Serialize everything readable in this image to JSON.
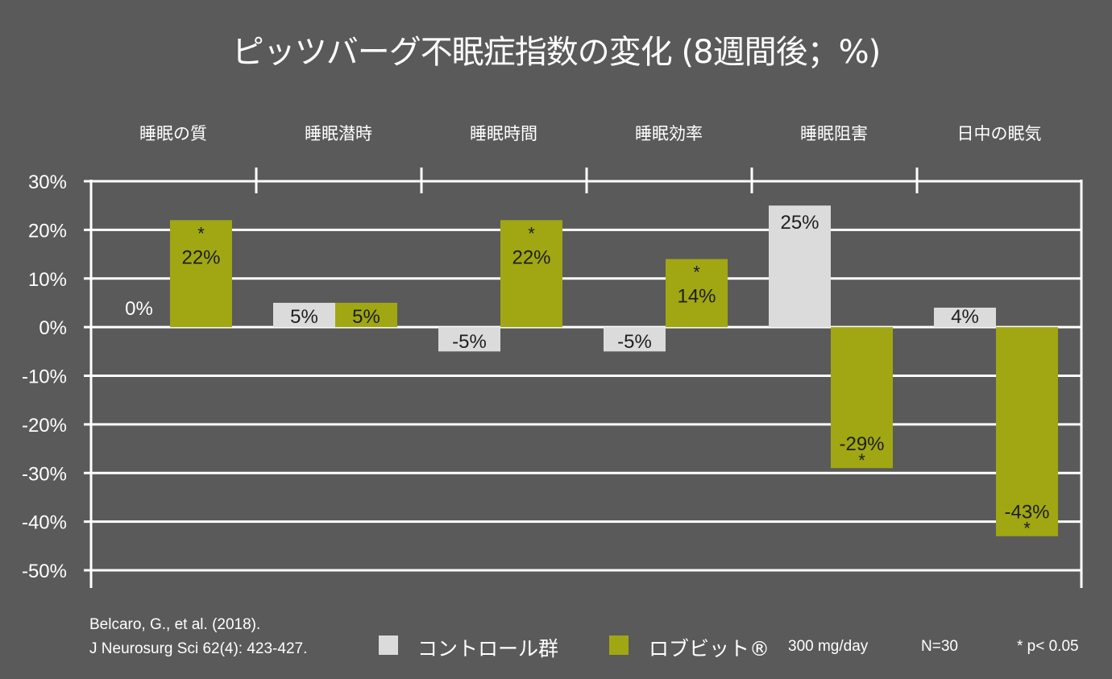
{
  "chart_data": {
    "type": "bar",
    "title": "ピッツバーグ不眠症指数の変化 (8週間後；%)",
    "categories": [
      "睡眠の質",
      "睡眠潜時",
      "睡眠時間",
      "睡眠効率",
      "睡眠阻害",
      "日中の眠気"
    ],
    "series": [
      {
        "name": "コントロール群",
        "color": "#dcdbdc",
        "values": [
          0,
          5,
          -5,
          -5,
          25,
          4
        ],
        "labels": [
          "0%",
          "5%",
          "-5%",
          "-5%",
          "25%",
          "4%"
        ],
        "significant": [
          false,
          false,
          false,
          false,
          false,
          false
        ]
      },
      {
        "name": "ロブビット®",
        "color": "#a0a713",
        "values": [
          22,
          5,
          22,
          14,
          -29,
          -43
        ],
        "labels": [
          "22%",
          "5%",
          "22%",
          "14%",
          "-29%",
          "-43%"
        ],
        "significant": [
          true,
          false,
          true,
          true,
          true,
          true
        ]
      }
    ],
    "yticks": [
      30,
      20,
      10,
      0,
      -10,
      -20,
      -30,
      -40,
      -50
    ],
    "ytick_labels": [
      "30%",
      "20%",
      "10%",
      "0%",
      "-10%",
      "-20%",
      "-30%",
      "-40%",
      "-50%"
    ],
    "ylim": [
      -50,
      30
    ],
    "xlabel": "",
    "ylabel": "",
    "grid": true,
    "legend_position": "bottom",
    "significance_marker": "*"
  },
  "footer": {
    "citation_line1": "Belcaro, G., et al. (2018).",
    "citation_line2": "J Neurosurg Sci 62(4): 423-427.",
    "legend_control": "コントロール群",
    "legend_treatment": "ロブビット®",
    "dose": "300 mg/day",
    "n": "N=30",
    "significance": "* p< 0.05"
  },
  "colors": {
    "background": "#5a5a5a",
    "control": "#dcdbdc",
    "treatment": "#a0a713",
    "grid": "#ffffff",
    "text": "#ffffff",
    "bar_text": "#1e1e1e"
  }
}
